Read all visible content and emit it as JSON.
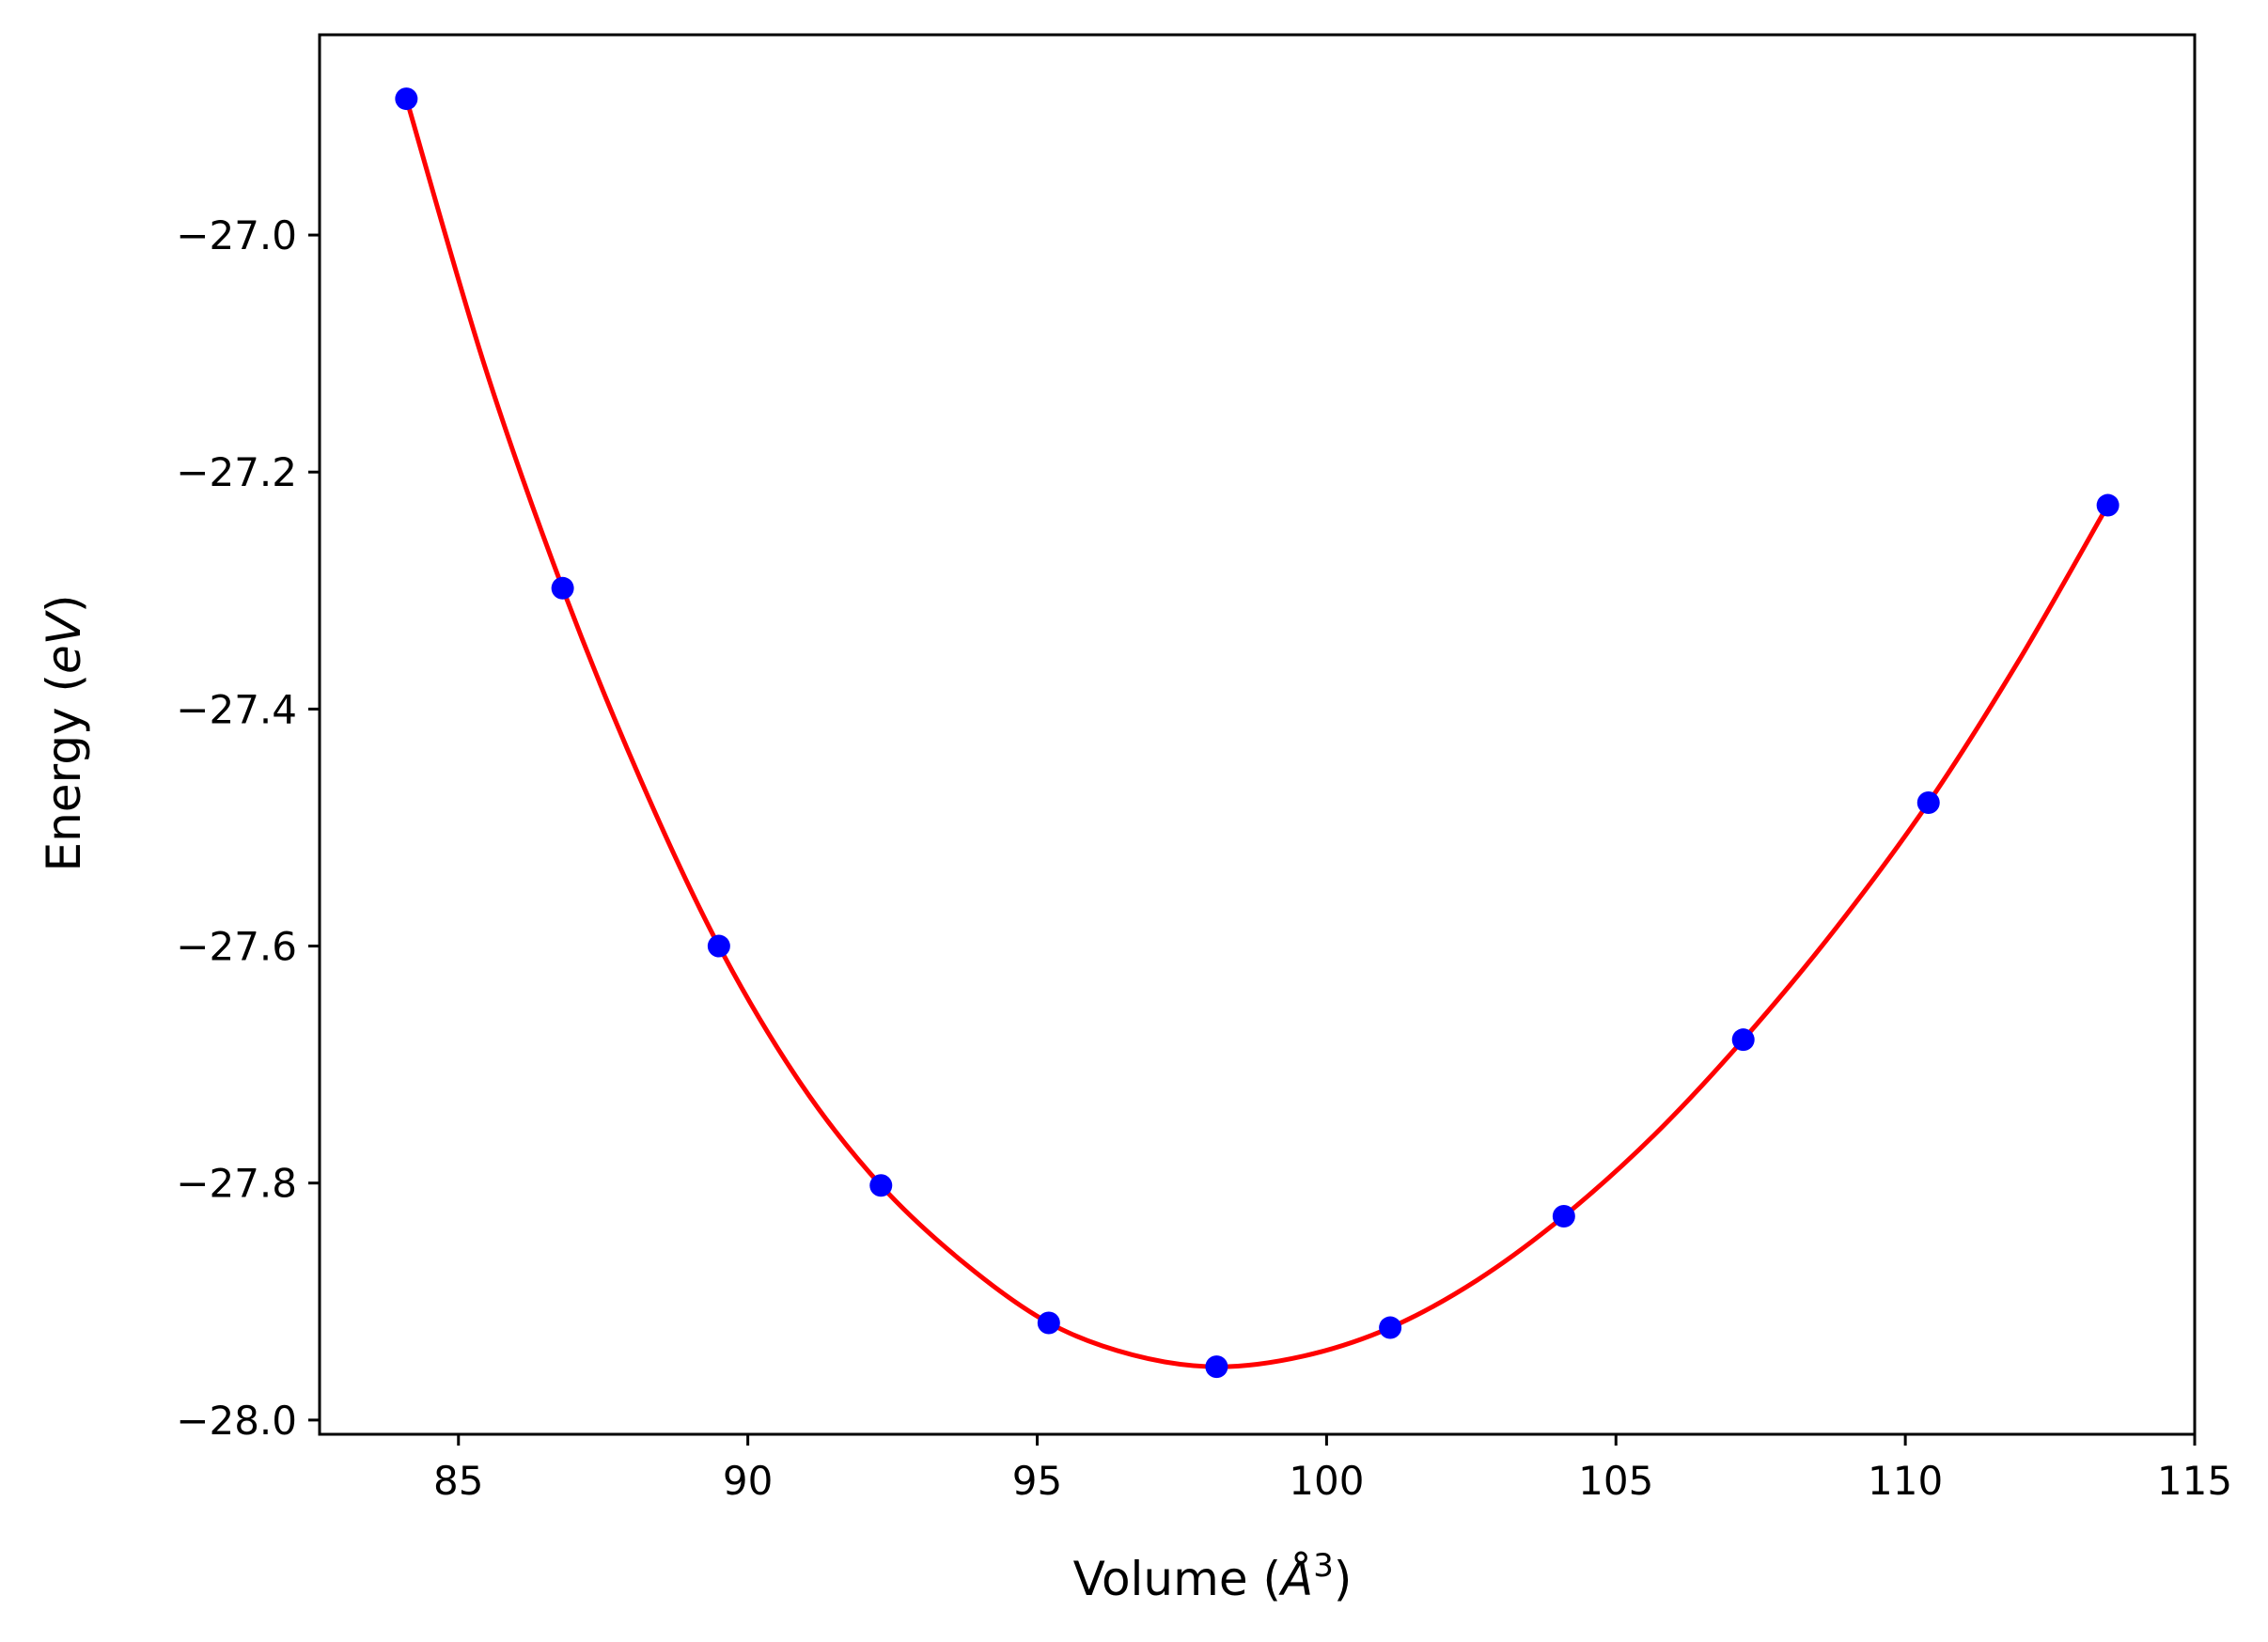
{
  "chart_data": {
    "type": "line",
    "title": "",
    "xlabel": "Volume (Å³)",
    "ylabel": "Energy (eV)",
    "xlabel_parts": {
      "prefix": "Volume (",
      "unit": "Å",
      "exponent": "3",
      "suffix": ")"
    },
    "ylabel_parts": {
      "prefix": "Energy (",
      "unit": "eV",
      "suffix": ")"
    },
    "xlim": [
      82.6,
      115.0
    ],
    "ylim": [
      -28.012,
      -26.831
    ],
    "xticks": [
      85,
      90,
      95,
      100,
      105,
      110,
      115
    ],
    "xtick_labels": [
      "85",
      "90",
      "95",
      "100",
      "105",
      "110",
      "115"
    ],
    "yticks": [
      -28.0,
      -27.8,
      -27.6,
      -27.4,
      -27.2,
      -27.0
    ],
    "ytick_labels": [
      "−28.0",
      "−27.8",
      "−27.6",
      "−27.4",
      "−27.2",
      "−27.0"
    ],
    "grid": false,
    "series": [
      {
        "kind": "scatter",
        "color": "#0000ff",
        "x": [
          84.1,
          86.8,
          89.5,
          92.3,
          95.2,
          98.1,
          101.1,
          104.1,
          107.2,
          110.4,
          113.5
        ],
        "y": [
          -26.885,
          -27.298,
          -27.6,
          -27.802,
          -27.918,
          -27.955,
          -27.922,
          -27.828,
          -27.679,
          -27.479,
          -27.228
        ]
      },
      {
        "kind": "line",
        "color": "#ff0000",
        "x": [
          84.1,
          85.45,
          86.8,
          88.15,
          89.5,
          90.9,
          92.3,
          93.75,
          95.2,
          96.65,
          98.1,
          99.6,
          101.1,
          102.6,
          104.1,
          105.65,
          107.2,
          108.8,
          110.4,
          111.95,
          113.5
        ],
        "y": [
          -26.885,
          -27.11,
          -27.298,
          -27.46,
          -27.6,
          -27.715,
          -27.802,
          -27.868,
          -27.918,
          -27.945,
          -27.955,
          -27.946,
          -27.922,
          -27.882,
          -27.828,
          -27.76,
          -27.679,
          -27.585,
          -27.479,
          -27.36,
          -27.228
        ]
      }
    ]
  }
}
